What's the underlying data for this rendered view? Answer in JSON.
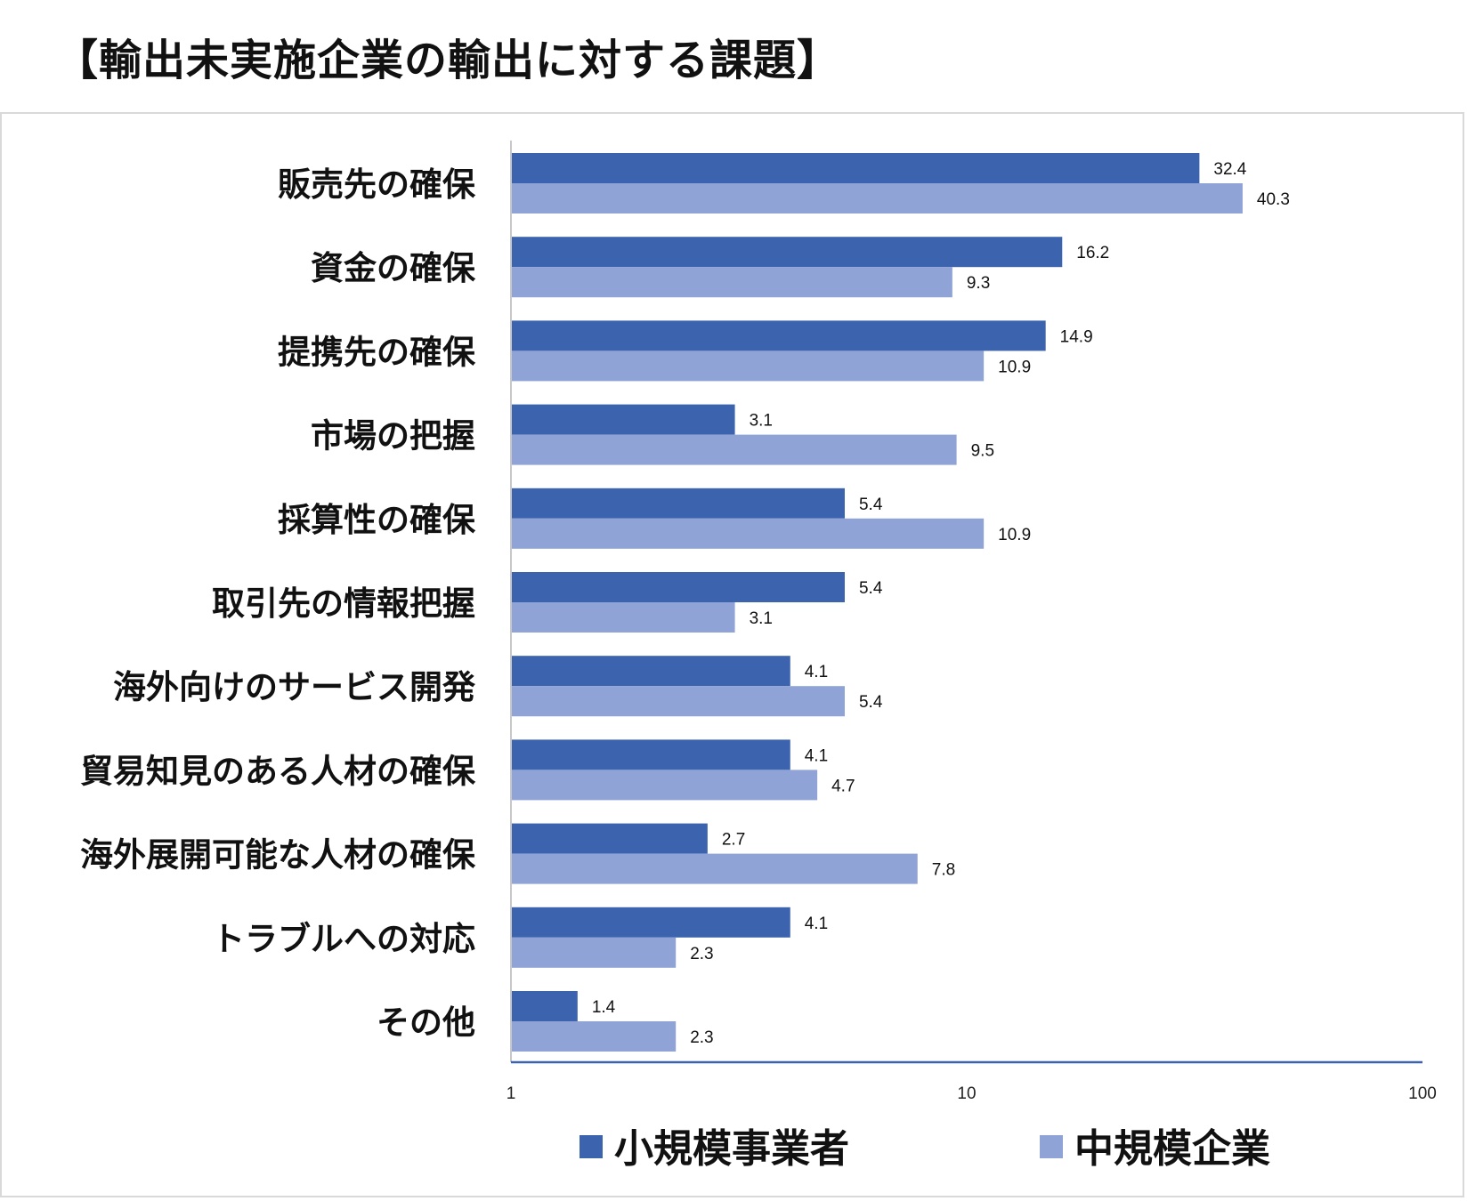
{
  "page": {
    "title": "【輸出未実施企業の輸出に対する課題】"
  },
  "colors": {
    "series_small": "#3c64ae",
    "series_medium": "#8fa3d6",
    "axis_line": "#3c64ae",
    "category_axis": "#c8c8c8",
    "frame_border": "#d9d9d9"
  },
  "chart_data": {
    "type": "bar",
    "orientation": "horizontal",
    "title": "【輸出未実施企業の輸出に対する課題】",
    "xlabel": "",
    "ylabel": "",
    "x_scale": "log",
    "xlim": [
      1,
      100
    ],
    "x_ticks": [
      "1",
      "10",
      "100"
    ],
    "grid": false,
    "legend": "bottom",
    "categories": [
      "販売先の確保",
      "資金の確保",
      "提携先の確保",
      "市場の把握",
      "採算性の確保",
      "取引先の情報把握",
      "海外向けのサービス開発",
      "貿易知見のある人材の確保",
      "海外展開可能な人材の確保",
      "トラブルへの対応",
      "その他"
    ],
    "series": [
      {
        "name": "小規模事業者",
        "color": "#3c64ae",
        "values": [
          32.4,
          16.2,
          14.9,
          3.1,
          5.4,
          5.4,
          4.1,
          4.1,
          2.7,
          4.1,
          1.4
        ],
        "labels": [
          "32.4",
          "16.2",
          "14.9",
          "3.1",
          "5.4",
          "5.4",
          "4.1",
          "4.1",
          "2.7",
          "4.1",
          "1.4"
        ]
      },
      {
        "name": "中規模企業",
        "color": "#8fa3d6",
        "values": [
          40.3,
          9.3,
          10.9,
          9.5,
          10.9,
          3.1,
          5.4,
          4.7,
          7.8,
          2.3,
          2.3
        ],
        "labels": [
          "40.3",
          "9.3",
          "10.9",
          "9.5",
          "10.9",
          "3.1",
          "5.4",
          "4.7",
          "7.8",
          "2.3",
          "2.3"
        ]
      }
    ]
  }
}
